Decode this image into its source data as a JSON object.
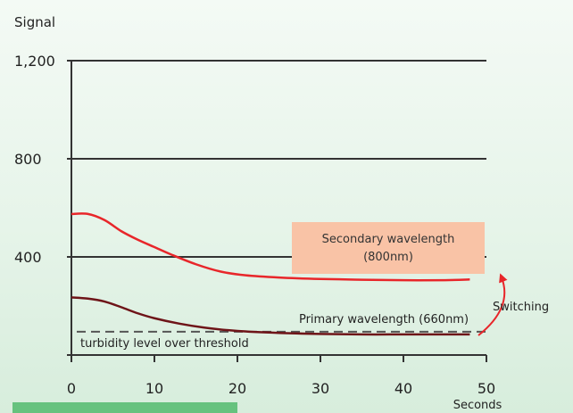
{
  "chart_data": {
    "type": "line",
    "ylabel": "Signal",
    "xlabel": "Seconds",
    "xlim": [
      0,
      50
    ],
    "ylim": [
      0,
      1200
    ],
    "x_ticks": [
      "0",
      "10",
      "20",
      "30",
      "40",
      "50"
    ],
    "y_ticks": [
      "400",
      "800",
      "1,200"
    ],
    "grid": true,
    "series": [
      {
        "name": "Secondary wavelength (800nm)",
        "color": "#e8262a",
        "x": [
          0,
          2,
          4,
          6,
          8,
          10,
          12,
          15,
          18,
          21,
          25,
          30,
          35,
          40,
          45,
          48
        ],
        "y": [
          575,
          575,
          550,
          505,
          470,
          440,
          410,
          370,
          340,
          325,
          316,
          310,
          307,
          305,
          305,
          308
        ]
      },
      {
        "name": "Primary wavelength (660nm)",
        "color": "#6e1418",
        "x": [
          0,
          2,
          4,
          6,
          8,
          10,
          13,
          16,
          20,
          25,
          30,
          35,
          40,
          45,
          48
        ],
        "y": [
          235,
          230,
          218,
          195,
          170,
          150,
          128,
          112,
          98,
          90,
          86,
          84,
          84,
          84,
          84
        ]
      }
    ],
    "threshold": {
      "y": 95,
      "label": "turbidity level over threshold"
    },
    "annotations": {
      "secondary_box": "Secondary wavelength\n(800nm)",
      "primary_label": "Primary wavelength (660nm)",
      "switching_label": "Switching"
    },
    "colors": {
      "box_fill": "#f9c3a6",
      "switch_arrow": "#e8262a",
      "bottom_bar": "#66c27e"
    }
  }
}
